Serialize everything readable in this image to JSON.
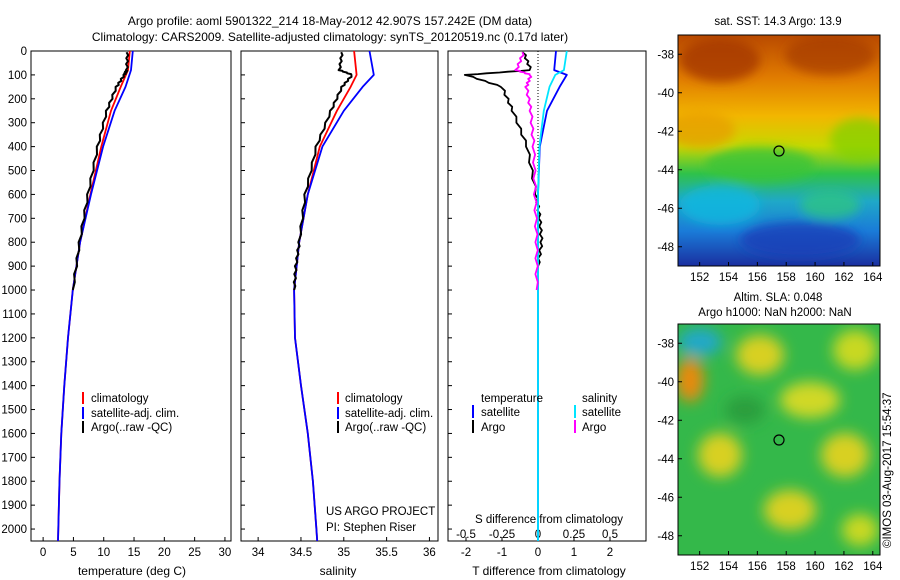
{
  "header": {
    "line1": "Argo profile: aoml 5901322_214 18-May-2012 42.907S 157.242E (DM data)",
    "line2": "Climatology: CARS2009. Satellite-adjusted climatology: synTS_20120519.nc (0.17d later)"
  },
  "colors": {
    "climatology": "#ff0000",
    "satellite": "#0000ff",
    "argo": "#000000",
    "sat_salinity": "#00e5ff",
    "argo_salinity": "#ff00ff"
  },
  "depth_ticks": [
    "0",
    "100",
    "200",
    "300",
    "400",
    "500",
    "600",
    "700",
    "800",
    "900",
    "1000",
    "1100",
    "1200",
    "1300",
    "1400",
    "1500",
    "1600",
    "1700",
    "1800",
    "1900",
    "2000"
  ],
  "temperature_panel": {
    "xlabel": "temperature (deg C)",
    "xticks": [
      "0",
      "5",
      "10",
      "15",
      "20",
      "25",
      "30"
    ],
    "legend": [
      "climatology",
      "satellite-adj. clim.",
      "Argo(..raw -QC)"
    ]
  },
  "salinity_panel": {
    "xlabel": "salinity",
    "xticks": [
      "34",
      "34.5",
      "35",
      "35.5",
      "36"
    ],
    "legend": [
      "climatology",
      "satellite-adj. clim.",
      "Argo(..raw -QC)"
    ],
    "credit1": "US ARGO PROJECT",
    "credit2": "PI: Stephen Riser"
  },
  "difference_panel": {
    "top_axis_label": "S difference from climatology",
    "top_ticks": [
      "-0.5",
      "-0.25",
      "0",
      "0.25",
      "0.5"
    ],
    "xlabel": "T difference from climatology",
    "xticks": [
      "-2",
      "-1",
      "0",
      "1",
      "2"
    ],
    "legend_head_t": "temperature",
    "legend_head_s": "salinity",
    "legend_t": [
      "satellite",
      "Argo"
    ],
    "legend_s": [
      "satellite",
      "Argo"
    ]
  },
  "sst_map": {
    "title": "sat. SST: 14.3 Argo: 13.9",
    "yticks": [
      "-38",
      "-40",
      "-42",
      "-44",
      "-46",
      "-48"
    ],
    "xticks": [
      "152",
      "154",
      "156",
      "158",
      "160",
      "162",
      "164"
    ]
  },
  "sla_map": {
    "title1": "Altim. SLA: 0.048",
    "title2": "Argo h1000: NaN h2000: NaN",
    "yticks": [
      "-38",
      "-40",
      "-42",
      "-44",
      "-46",
      "-48"
    ],
    "xticks": [
      "152",
      "154",
      "156",
      "158",
      "160",
      "162",
      "164"
    ],
    "credit": "©IMOS 03-Aug-2017 15:54:37"
  },
  "chart_data": [
    {
      "type": "line",
      "title": "",
      "xlabel": "temperature (deg C)",
      "ylabel": "",
      "xlim": [
        -2,
        31
      ],
      "ylim": [
        2050,
        0
      ],
      "series": [
        {
          "name": "climatology",
          "depth": [
            0,
            80,
            150,
            250,
            400,
            600,
            800,
            1000,
            1200,
            1400,
            1600,
            1800,
            2000,
            2050
          ],
          "x": [
            14.3,
            14.0,
            12.8,
            11.2,
            9.6,
            7.8,
            6.1,
            4.9,
            4.1,
            3.5,
            3.0,
            2.7,
            2.5,
            2.45
          ]
        },
        {
          "name": "satellite-adj. clim.",
          "depth": [
            0,
            80,
            150,
            250,
            400,
            600,
            800,
            1000,
            1200,
            1400,
            1600,
            1800,
            2000,
            2050
          ],
          "x": [
            14.8,
            14.5,
            13.6,
            11.8,
            9.9,
            7.9,
            6.1,
            4.9,
            4.1,
            3.5,
            3.0,
            2.7,
            2.5,
            2.45
          ]
        },
        {
          "name": "Argo(..raw -QC)",
          "depth": [
            5,
            80,
            100,
            150,
            250,
            400,
            600,
            800,
            1000
          ],
          "x": [
            13.9,
            13.8,
            13.4,
            12.1,
            10.5,
            9.0,
            7.4,
            6.0,
            4.9
          ]
        }
      ]
    },
    {
      "type": "line",
      "title": "",
      "xlabel": "salinity",
      "ylabel": "",
      "xlim": [
        33.8,
        36.1
      ],
      "ylim": [
        2050,
        0
      ],
      "series": [
        {
          "name": "climatology",
          "depth": [
            0,
            100,
            150,
            250,
            400,
            600,
            800,
            1000,
            1200,
            1400,
            1600,
            1800,
            2000,
            2050
          ],
          "x": [
            35.12,
            35.15,
            35.08,
            34.92,
            34.72,
            34.58,
            34.48,
            34.42,
            34.43,
            34.5,
            34.58,
            34.64,
            34.68,
            34.69
          ]
        },
        {
          "name": "satellite-adj. clim.",
          "depth": [
            0,
            100,
            150,
            250,
            400,
            600,
            800,
            1000,
            1200,
            1400,
            1600,
            1800,
            2000,
            2050
          ],
          "x": [
            35.3,
            35.35,
            35.22,
            35.0,
            34.75,
            34.58,
            34.48,
            34.42,
            34.43,
            34.5,
            34.58,
            34.64,
            34.68,
            34.69
          ]
        },
        {
          "name": "Argo(..raw -QC)",
          "depth": [
            5,
            80,
            100,
            150,
            250,
            400,
            600,
            800,
            900,
            1000
          ],
          "x": [
            34.98,
            34.95,
            35.1,
            34.98,
            34.85,
            34.68,
            34.55,
            34.48,
            34.44,
            34.42
          ]
        }
      ]
    },
    {
      "type": "line",
      "title": "",
      "xlabel": "T difference from climatology",
      "ylabel": "",
      "xlim": [
        -2.5,
        3.0
      ],
      "ylim": [
        2050,
        0
      ],
      "top_axis": {
        "label": "S difference from climatology",
        "lim": [
          -0.625,
          0.75
        ]
      },
      "series": [
        {
          "name": "satellite",
          "variable": "temperature",
          "depth": [
            0,
            80,
            100,
            150,
            250,
            400,
            600,
            2050
          ],
          "x": [
            0.5,
            0.45,
            0.8,
            0.6,
            0.25,
            0.05,
            0.0,
            0.0
          ]
        },
        {
          "name": "Argo",
          "variable": "temperature",
          "depth": [
            5,
            80,
            100,
            150,
            250,
            400,
            600,
            700,
            800,
            900
          ],
          "x": [
            -0.4,
            -0.2,
            -2.0,
            -1.0,
            -0.7,
            -0.3,
            -0.05,
            0.05,
            0.1,
            0.0
          ]
        },
        {
          "name": "satellite",
          "variable": "salinity",
          "depth": [
            0,
            80,
            100,
            150,
            250,
            400,
            600,
            2050
          ],
          "x": [
            0.2,
            0.18,
            0.12,
            0.08,
            0.04,
            0.01,
            0.0,
            0.0
          ]
        },
        {
          "name": "Argo",
          "variable": "salinity",
          "depth": [
            5,
            80,
            100,
            150,
            250,
            400,
            600,
            800,
            1000
          ],
          "x": [
            -0.1,
            -0.15,
            -0.05,
            -0.08,
            -0.05,
            -0.03,
            -0.02,
            -0.01,
            -0.01
          ]
        }
      ]
    },
    {
      "type": "heatmap",
      "title": "sat. SST: 14.3 Argo: 13.9",
      "xlim": [
        150.5,
        164.5
      ],
      "ylim": [
        -49,
        -37
      ],
      "argo_position": {
        "lon": 157.242,
        "lat": -42.907
      }
    },
    {
      "type": "heatmap",
      "title": "Altim. SLA: 0.048",
      "xlim": [
        150.5,
        164.5
      ],
      "ylim": [
        -49,
        -37
      ],
      "argo_position": {
        "lon": 157.242,
        "lat": -42.907
      }
    }
  ]
}
